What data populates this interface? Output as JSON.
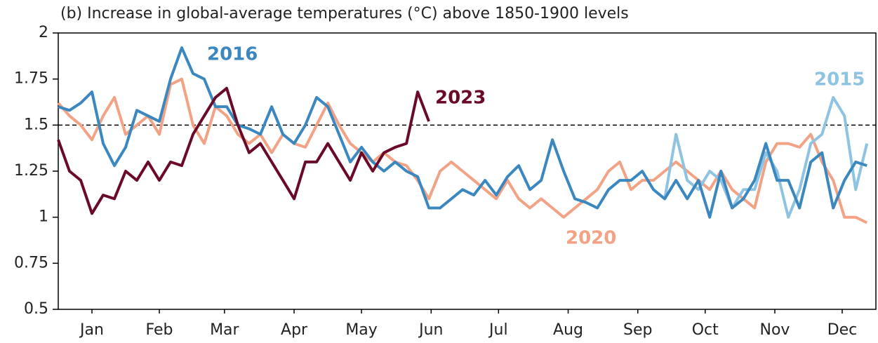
{
  "chart_data": {
    "type": "line",
    "title": "(b) Increase in global-average temperatures (°C) above 1850-1900 levels",
    "x": [
      1,
      6,
      11,
      16,
      21,
      26,
      31,
      36,
      41,
      46,
      51,
      56,
      61,
      66,
      71,
      76,
      81,
      86,
      91,
      96,
      101,
      106,
      111,
      116,
      121,
      126,
      131,
      136,
      141,
      146,
      151,
      156,
      161,
      166,
      171,
      176,
      181,
      186,
      191,
      196,
      201,
      206,
      211,
      216,
      221,
      226,
      231,
      236,
      241,
      246,
      251,
      256,
      261,
      266,
      271,
      276,
      281,
      286,
      291,
      296,
      301,
      306,
      311,
      316,
      321,
      326,
      331,
      336,
      341,
      346,
      351,
      356,
      361
    ],
    "xlim": [
      1,
      365
    ],
    "xticks": [
      {
        "value": 16,
        "label": "Jan"
      },
      {
        "value": 46,
        "label": "Feb"
      },
      {
        "value": 75,
        "label": "Mar"
      },
      {
        "value": 106,
        "label": "Apr"
      },
      {
        "value": 136,
        "label": "May"
      },
      {
        "value": 167,
        "label": "Jun"
      },
      {
        "value": 197,
        "label": "Jul"
      },
      {
        "value": 228,
        "label": "Aug"
      },
      {
        "value": 259,
        "label": "Sep"
      },
      {
        "value": 289,
        "label": "Oct"
      },
      {
        "value": 320,
        "label": "Nov"
      },
      {
        "value": 350,
        "label": "Dec"
      }
    ],
    "ylim": [
      0.5,
      2
    ],
    "yticks": [
      0.5,
      0.75,
      1,
      1.25,
      1.5,
      1.75,
      2
    ],
    "reference_line": 1.5,
    "series": [
      {
        "name": "2020",
        "color": "#f2a285",
        "values": [
          1.62,
          1.55,
          1.5,
          1.42,
          1.55,
          1.65,
          1.45,
          1.5,
          1.55,
          1.45,
          1.72,
          1.75,
          1.5,
          1.4,
          1.6,
          1.55,
          1.45,
          1.4,
          1.45,
          1.35,
          1.45,
          1.4,
          1.38,
          1.5,
          1.62,
          1.5,
          1.4,
          1.35,
          1.3,
          1.35,
          1.3,
          1.28,
          1.2,
          1.1,
          1.25,
          1.3,
          1.25,
          1.2,
          1.15,
          1.1,
          1.2,
          1.1,
          1.05,
          1.1,
          1.05,
          1.0,
          1.05,
          1.1,
          1.15,
          1.25,
          1.3,
          1.15,
          1.2,
          1.2,
          1.25,
          1.3,
          1.25,
          1.2,
          1.15,
          1.25,
          1.15,
          1.1,
          1.05,
          1.3,
          1.4,
          1.4,
          1.38,
          1.45,
          1.3,
          1.2,
          1.0,
          1.0,
          0.97
        ]
      },
      {
        "name": "2015",
        "color": "#8ec3e2",
        "values": [
          null,
          null,
          null,
          null,
          null,
          null,
          null,
          null,
          null,
          null,
          null,
          null,
          null,
          null,
          null,
          null,
          null,
          null,
          null,
          null,
          null,
          null,
          null,
          null,
          null,
          null,
          null,
          null,
          null,
          null,
          null,
          null,
          null,
          null,
          null,
          null,
          null,
          null,
          null,
          null,
          null,
          null,
          null,
          null,
          null,
          null,
          null,
          null,
          null,
          null,
          null,
          null,
          null,
          null,
          1.1,
          1.45,
          1.2,
          1.15,
          1.25,
          1.2,
          1.05,
          1.15,
          1.15,
          1.35,
          1.25,
          1.0,
          1.15,
          1.4,
          1.45,
          1.65,
          1.55,
          1.15,
          1.4
        ]
      },
      {
        "name": "2016",
        "color": "#3b87bf",
        "values": [
          1.6,
          1.58,
          1.62,
          1.68,
          1.4,
          1.28,
          1.38,
          1.58,
          1.55,
          1.52,
          1.75,
          1.92,
          1.78,
          1.75,
          1.6,
          1.6,
          1.5,
          1.48,
          1.45,
          1.6,
          1.45,
          1.4,
          1.5,
          1.65,
          1.6,
          1.45,
          1.3,
          1.38,
          1.3,
          1.25,
          1.3,
          1.25,
          1.22,
          1.05,
          1.05,
          1.1,
          1.15,
          1.12,
          1.2,
          1.12,
          1.22,
          1.28,
          1.15,
          1.2,
          1.42,
          1.25,
          1.1,
          1.08,
          1.05,
          1.15,
          1.2,
          1.2,
          1.25,
          1.15,
          1.1,
          1.2,
          1.1,
          1.2,
          1.0,
          1.25,
          1.05,
          1.1,
          1.2,
          1.4,
          1.2,
          1.2,
          1.05,
          1.3,
          1.35,
          1.05,
          1.2,
          1.3,
          1.28
        ]
      },
      {
        "name": "2023",
        "color": "#6b0a28",
        "values": [
          1.42,
          1.25,
          1.2,
          1.02,
          1.12,
          1.1,
          1.25,
          1.2,
          1.3,
          1.2,
          1.3,
          1.28,
          1.45,
          1.55,
          1.65,
          1.7,
          1.5,
          1.35,
          1.4,
          1.3,
          1.2,
          1.1,
          1.3,
          1.3,
          1.4,
          1.3,
          1.2,
          1.35,
          1.25,
          1.35,
          1.38,
          1.4,
          1.68,
          1.52,
          null,
          null,
          null,
          null,
          null,
          null,
          null,
          null,
          null,
          null,
          null,
          null,
          null,
          null,
          null,
          null,
          null,
          null,
          null,
          null,
          null,
          null,
          null,
          null,
          null,
          null,
          null,
          null,
          null,
          null,
          null,
          null,
          null,
          null,
          null,
          null,
          null,
          null,
          null
        ]
      }
    ]
  }
}
